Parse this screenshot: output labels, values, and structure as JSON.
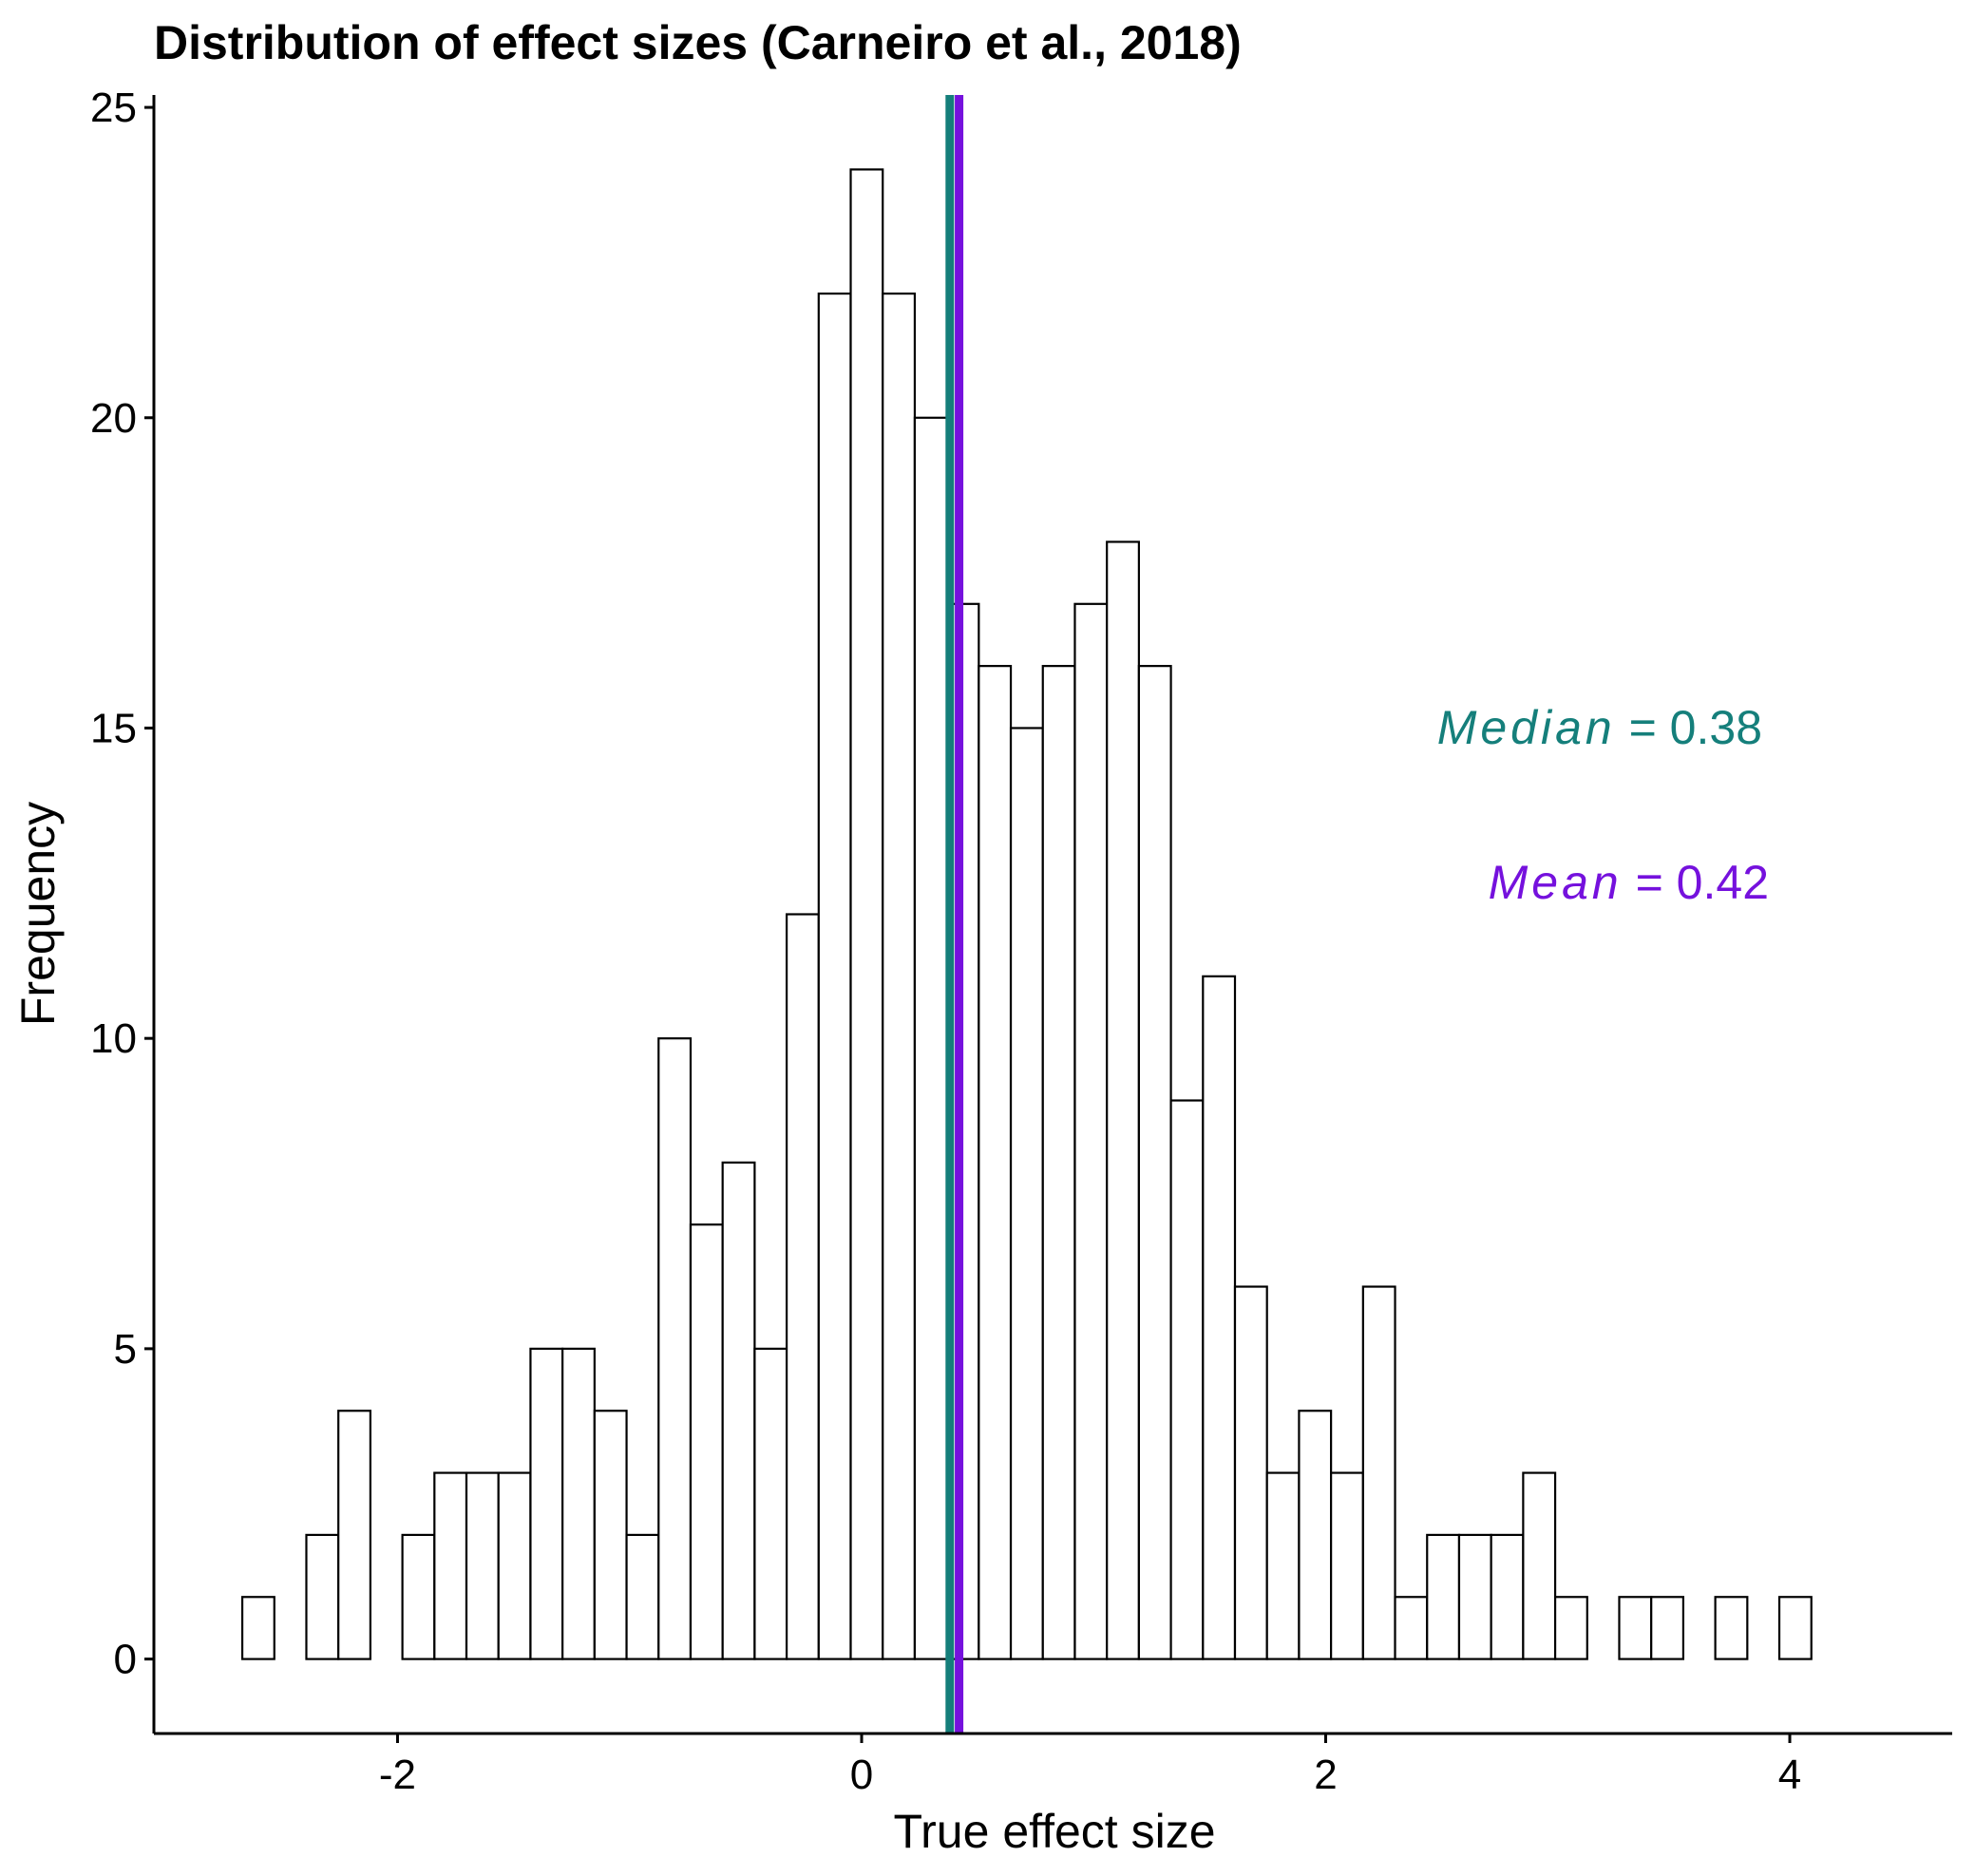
{
  "chart_data": {
    "type": "bar",
    "title": "Distribution of effect sizes (Carneiro et al., 2018)",
    "xlabel": "True effect size",
    "ylabel": "Frequency",
    "xlim": [
      -3.05,
      4.7
    ],
    "ylim": [
      -1.2,
      25.2
    ],
    "x_ticks": [
      -2,
      0,
      2,
      4
    ],
    "x_tick_labels": [
      "-2",
      "0",
      "2",
      "4"
    ],
    "y_ticks": [
      0,
      5,
      10,
      15,
      20,
      25
    ],
    "y_tick_labels": [
      "0",
      "5",
      "10",
      "15",
      "20",
      "25"
    ],
    "bin_width": 0.138,
    "bins_x": [
      -2.6,
      -2.462,
      -2.324,
      -2.186,
      -2.048,
      -1.91,
      -1.772,
      -1.634,
      -1.496,
      -1.358,
      -1.22,
      -1.082,
      -0.944,
      -0.806,
      -0.668,
      -0.53,
      -0.392,
      -0.254,
      -0.116,
      0.022,
      0.16,
      0.298,
      0.436,
      0.574,
      0.712,
      0.85,
      0.988,
      1.126,
      1.264,
      1.402,
      1.54,
      1.678,
      1.816,
      1.954,
      2.092,
      2.23,
      2.368,
      2.506,
      2.644,
      2.782,
      2.92,
      3.058,
      3.196,
      3.334,
      3.472,
      3.61,
      3.748,
      3.886,
      4.024
    ],
    "values": [
      1,
      0,
      2,
      4,
      0,
      2,
      3,
      3,
      3,
      5,
      5,
      4,
      2,
      10,
      7,
      8,
      5,
      12,
      22,
      24,
      22,
      20,
      17,
      16,
      15,
      16,
      17,
      18,
      16,
      9,
      11,
      6,
      3,
      4,
      3,
      6,
      1,
      2,
      2,
      2,
      3,
      1,
      0,
      1,
      1,
      0,
      1,
      0,
      1
    ],
    "bar_fill": "#ffffff",
    "bar_stroke": "#000000",
    "vlines": [
      {
        "label": "Median",
        "value": 0.38,
        "color": "#157f7b"
      },
      {
        "label": "Mean",
        "value": 0.42,
        "color": "#7511dd"
      }
    ],
    "annotations": [
      {
        "name": "Median",
        "text": " = 0.38",
        "color": "#157f7b"
      },
      {
        "name": "Mean",
        "text": " = 0.42",
        "color": "#7511dd"
      }
    ],
    "grid": false,
    "legend": "none"
  }
}
